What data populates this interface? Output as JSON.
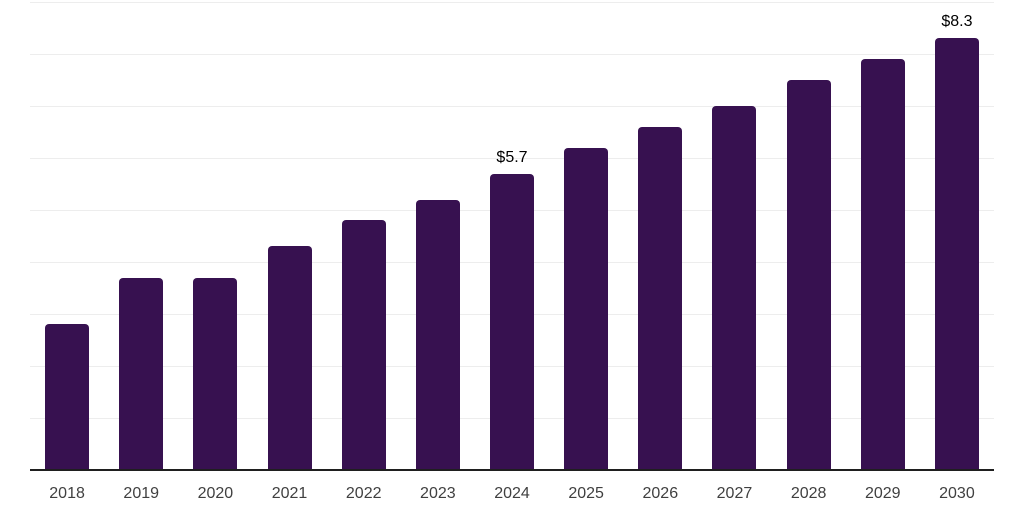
{
  "chart_data": {
    "type": "bar",
    "title": "",
    "xlabel": "",
    "ylabel": "",
    "categories": [
      "2018",
      "2019",
      "2020",
      "2021",
      "2022",
      "2023",
      "2024",
      "2025",
      "2026",
      "2027",
      "2028",
      "2029",
      "2030"
    ],
    "values": [
      2.8,
      3.7,
      3.7,
      4.3,
      4.8,
      5.2,
      5.7,
      6.2,
      6.6,
      7.0,
      7.5,
      7.9,
      8.3
    ],
    "data_labels": {
      "2024": "$5.7",
      "2030": "$8.3"
    },
    "ylim": [
      0,
      9
    ],
    "gridline_step": 1,
    "grid": "horizontal",
    "legend": "none",
    "y_axis_labels_visible": false,
    "colors": {
      "bar": "#371150",
      "axis": "#1f1f1f",
      "gridline": "#ededed",
      "tick_label": "#404040",
      "data_label": "#000000",
      "background": "#ffffff"
    }
  }
}
